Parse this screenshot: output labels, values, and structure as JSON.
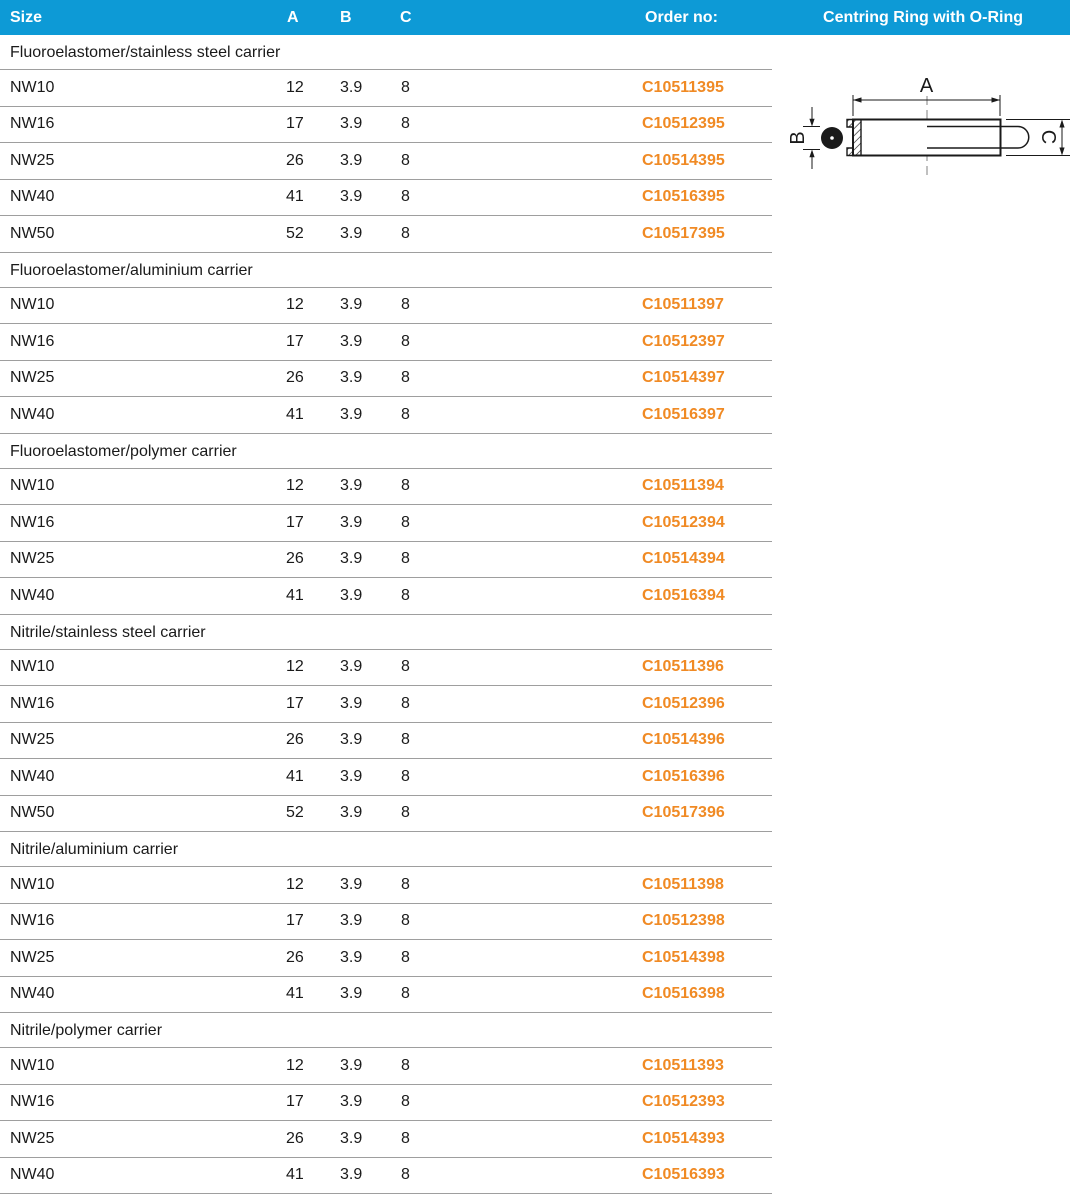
{
  "header": {
    "columns": {
      "size": "Size",
      "a": "A",
      "b": "B",
      "c": "C",
      "order": "Order no:"
    },
    "product_title": "Centring Ring with O-Ring"
  },
  "table": {
    "sections": [
      {
        "label": "Fluoroelastomer/stainless steel carrier",
        "rows": [
          {
            "size": "NW10",
            "a": "12",
            "b": "3.9",
            "c": "8",
            "order_no": "C10511395"
          },
          {
            "size": "NW16",
            "a": "17",
            "b": "3.9",
            "c": "8",
            "order_no": "C10512395"
          },
          {
            "size": "NW25",
            "a": "26",
            "b": "3.9",
            "c": "8",
            "order_no": "C10514395"
          },
          {
            "size": "NW40",
            "a": "41",
            "b": "3.9",
            "c": "8",
            "order_no": "C10516395"
          },
          {
            "size": "NW50",
            "a": "52",
            "b": "3.9",
            "c": "8",
            "order_no": "C10517395"
          }
        ]
      },
      {
        "label": "Fluoroelastomer/aluminium carrier",
        "rows": [
          {
            "size": "NW10",
            "a": "12",
            "b": "3.9",
            "c": "8",
            "order_no": "C10511397"
          },
          {
            "size": "NW16",
            "a": "17",
            "b": "3.9",
            "c": "8",
            "order_no": "C10512397"
          },
          {
            "size": "NW25",
            "a": "26",
            "b": "3.9",
            "c": "8",
            "order_no": "C10514397"
          },
          {
            "size": "NW40",
            "a": "41",
            "b": "3.9",
            "c": "8",
            "order_no": "C10516397"
          }
        ]
      },
      {
        "label": "Fluoroelastomer/polymer carrier",
        "rows": [
          {
            "size": "NW10",
            "a": "12",
            "b": "3.9",
            "c": "8",
            "order_no": "C10511394"
          },
          {
            "size": "NW16",
            "a": "17",
            "b": "3.9",
            "c": "8",
            "order_no": "C10512394"
          },
          {
            "size": "NW25",
            "a": "26",
            "b": "3.9",
            "c": "8",
            "order_no": "C10514394"
          },
          {
            "size": "NW40",
            "a": "41",
            "b": "3.9",
            "c": "8",
            "order_no": "C10516394"
          }
        ]
      },
      {
        "label": "Nitrile/stainless steel carrier",
        "rows": [
          {
            "size": "NW10",
            "a": "12",
            "b": "3.9",
            "c": "8",
            "order_no": "C10511396"
          },
          {
            "size": "NW16",
            "a": "17",
            "b": "3.9",
            "c": "8",
            "order_no": "C10512396"
          },
          {
            "size": "NW25",
            "a": "26",
            "b": "3.9",
            "c": "8",
            "order_no": "C10514396"
          },
          {
            "size": "NW40",
            "a": "41",
            "b": "3.9",
            "c": "8",
            "order_no": "C10516396"
          },
          {
            "size": "NW50",
            "a": "52",
            "b": "3.9",
            "c": "8",
            "order_no": "C10517396"
          }
        ]
      },
      {
        "label": "Nitrile/aluminium carrier",
        "rows": [
          {
            "size": "NW10",
            "a": "12",
            "b": "3.9",
            "c": "8",
            "order_no": "C10511398"
          },
          {
            "size": "NW16",
            "a": "17",
            "b": "3.9",
            "c": "8",
            "order_no": "C10512398"
          },
          {
            "size": "NW25",
            "a": "26",
            "b": "3.9",
            "c": "8",
            "order_no": "C10514398"
          },
          {
            "size": "NW40",
            "a": "41",
            "b": "3.9",
            "c": "8",
            "order_no": "C10516398"
          }
        ]
      },
      {
        "label": "Nitrile/polymer carrier",
        "rows": [
          {
            "size": "NW10",
            "a": "12",
            "b": "3.9",
            "c": "8",
            "order_no": "C10511393"
          },
          {
            "size": "NW16",
            "a": "17",
            "b": "3.9",
            "c": "8",
            "order_no": "C10512393"
          },
          {
            "size": "NW25",
            "a": "26",
            "b": "3.9",
            "c": "8",
            "order_no": "C10514393"
          },
          {
            "size": "NW40",
            "a": "41",
            "b": "3.9",
            "c": "8",
            "order_no": "C10516393"
          }
        ]
      }
    ]
  },
  "drawing": {
    "dim_labels": {
      "a": "A",
      "b": "B",
      "c": "C"
    }
  },
  "colors": {
    "header_blue": "#0d9ad6",
    "order_orange": "#f08a24",
    "divider_gray": "#9e9e9e",
    "text_dark": "#1a1a1a"
  }
}
